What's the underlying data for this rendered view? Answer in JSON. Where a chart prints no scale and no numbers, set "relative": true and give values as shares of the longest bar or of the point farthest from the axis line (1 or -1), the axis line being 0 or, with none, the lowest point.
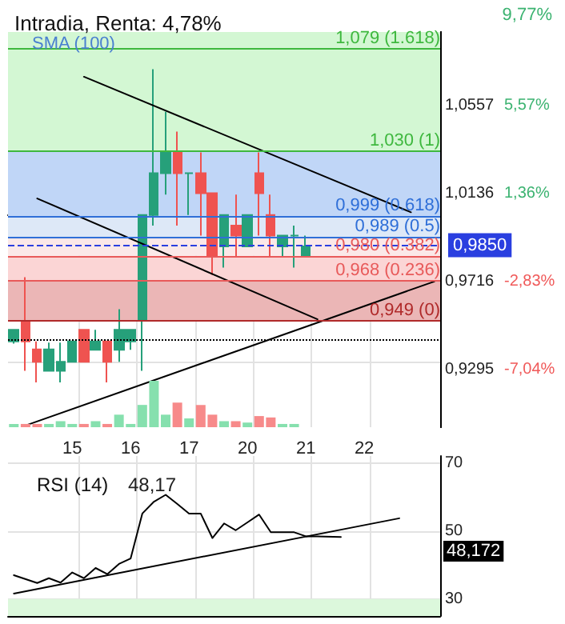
{
  "chart_data": [
    {
      "type": "candlestick",
      "title": "Intradia, Renta: 4,78%",
      "annotations": [
        "SMA (100)",
        "9,77%"
      ],
      "categories": [
        null,
        null,
        null,
        null,
        null,
        "15",
        null,
        null,
        null,
        null,
        "16",
        null,
        null,
        null,
        null,
        "17",
        null,
        null,
        null,
        null,
        "20",
        null,
        null,
        null,
        null,
        "21",
        null,
        null,
        null,
        null,
        "22",
        null,
        null,
        null,
        null,
        null,
        null
      ],
      "ohlc": [
        [
          0.939,
          0.945,
          0.938,
          0.9446
        ],
        [
          0.9487,
          0.9697,
          0.925,
          0.939
        ],
        [
          0.9352,
          0.939,
          0.9194,
          0.9293
        ],
        [
          0.925,
          0.9385,
          0.925,
          0.9352
        ],
        [
          0.925,
          0.9385,
          0.9194,
          0.9293
        ],
        [
          0.9293,
          0.939,
          0.929,
          0.939
        ],
        [
          0.9446,
          0.9446,
          0.9293,
          0.9293
        ],
        [
          0.935,
          0.9446,
          0.935,
          0.939
        ],
        [
          0.939,
          0.939,
          0.9194,
          0.9293
        ],
        [
          0.935,
          0.9544,
          0.9293,
          0.9446
        ],
        [
          0.939,
          0.9446,
          0.935,
          0.9446
        ],
        [
          0.949,
          0.9995,
          0.925,
          0.9995
        ],
        [
          0.9995,
          1.0692,
          0.9944,
          1.0195
        ],
        [
          1.0195,
          1.0488,
          1.0092,
          1.0294
        ],
        [
          1.0294,
          1.0394,
          0.9944,
          1.0195
        ],
        [
          1.0195,
          1.0195,
          0.9995,
          1.0195
        ],
        [
          1.0195,
          1.0294,
          0.9896,
          1.0099
        ],
        [
          1.0099,
          1.0099,
          0.9709,
          0.9799
        ],
        [
          0.9845,
          0.9995,
          0.9743,
          0.9995
        ],
        [
          0.9944,
          1.0092,
          0.9799,
          0.9896
        ],
        [
          0.9845,
          0.9995,
          0.9845,
          0.9995
        ],
        [
          1.0195,
          1.0294,
          0.9896,
          1.0099
        ],
        [
          0.9995,
          1.0092,
          0.9799,
          0.9896
        ],
        [
          0.9845,
          0.9896,
          0.9799,
          0.9896
        ],
        [
          0.9896,
          0.9944,
          0.9743,
          0.9896
        ],
        [
          0.9799,
          0.9896,
          0.9799,
          0.9845
        ],
        null,
        null,
        null,
        null,
        null,
        null,
        null,
        null,
        null,
        null,
        null
      ],
      "colors": [
        "#26a07a",
        "#ef5350",
        "#ef5350",
        "#26a07a",
        "#26a07a",
        "#26a07a",
        "#ef5350",
        "#26a07a",
        "#ef5350",
        "#26a07a",
        "#26a07a",
        "#26a07a",
        "#26a07a",
        "#26a07a",
        "#ef5350",
        "#26a07a",
        "#ef5350",
        "#ef5350",
        "#26a07a",
        "#ef5350",
        "#26a07a",
        "#ef5350",
        "#ef5350",
        "#26a07a",
        "#26a07a",
        "#26a07a",
        null,
        null,
        null,
        null,
        null,
        null,
        null,
        null,
        null,
        null,
        null
      ],
      "series": [
        {
          "type": "line",
          "color": "#000000",
          "values": [
            null,
            null,
            null,
            null,
            null,
            null,
            1.0656,
            null,
            null,
            null,
            null,
            null,
            null,
            null,
            null,
            null,
            null,
            null,
            null,
            null,
            null,
            null,
            null,
            null,
            null,
            null,
            null,
            null,
            null,
            null,
            null,
            null,
            null,
            null,
            1.0008,
            null,
            null
          ]
        },
        {
          "type": "line",
          "color": "#000000",
          "values": [
            null,
            null,
            1.0074,
            null,
            null,
            null,
            null,
            null,
            null,
            null,
            null,
            null,
            null,
            null,
            null,
            null,
            null,
            null,
            null,
            null,
            null,
            null,
            null,
            null,
            null,
            null,
            0.9496,
            null,
            null,
            null,
            null,
            null,
            null,
            null,
            null,
            null,
            null
          ]
        },
        {
          "type": "line",
          "color": "#000000",
          "values": [
            null,
            0.8988,
            null,
            null,
            null,
            null,
            null,
            null,
            null,
            null,
            null,
            null,
            null,
            null,
            null,
            null,
            null,
            null,
            null,
            null,
            null,
            null,
            null,
            null,
            null,
            null,
            null,
            null,
            null,
            null,
            null,
            null,
            null,
            null,
            null,
            null,
            0.9677
          ]
        }
      ],
      "marker": "none",
      "ylim": [
        0.898,
        1.087
      ],
      "yticks": [
        {
          "value": 0.9295,
          "label": "0,9295"
        },
        {
          "value": 0.9716,
          "label": "0,9716"
        },
        {
          "value": 1.0136,
          "label": "1,0136"
        },
        {
          "value": 1.0557,
          "label": "1,0557"
        }
      ],
      "y2lim": [
        -10.19,
        8.71
      ],
      "y2ticks": [
        {
          "value": -7.04,
          "label": "-7,04%"
        },
        {
          "value": -2.83,
          "label": "-2,83%"
        },
        {
          "value": 1.36,
          "label": "1,36%"
        },
        {
          "value": 5.57,
          "label": "5,57%"
        }
      ],
      "grid": true,
      "bands": [
        {
          "axis": "y",
          "from": 1.03,
          "to": 1.087,
          "color": "#d3f7d3"
        },
        {
          "axis": "y",
          "from": 0.999,
          "to": 1.03,
          "color": "#c0d6f7"
        },
        {
          "axis": "y",
          "from": 0.989,
          "to": 0.999,
          "color": "#dde8f7"
        },
        {
          "axis": "y",
          "from": 0.98,
          "to": 0.989,
          "color": "#fbe8e8"
        },
        {
          "axis": "y",
          "from": 0.968,
          "to": 0.98,
          "color": "#fbd5d5"
        },
        {
          "axis": "y",
          "from": 0.949,
          "to": 0.968,
          "color": "#ebb6b6"
        }
      ],
      "ref_lines": [
        {
          "axis": "y",
          "value": 1.079,
          "label": "1,079 (1.618)",
          "color": "#3fb83f"
        },
        {
          "axis": "y",
          "value": 1.03,
          "label": "1,030 (1)",
          "color": "#3fb83f"
        },
        {
          "axis": "y",
          "value": 0.999,
          "label": "0,999 (0.618)",
          "color": "#2f6fd8"
        },
        {
          "axis": "y",
          "value": 0.989,
          "label": "0,989 (0.5)",
          "color": "#2f6fd8"
        },
        {
          "axis": "y",
          "value": 0.98,
          "label": "0,980 (0.382)",
          "color": "#e85a5a"
        },
        {
          "axis": "y",
          "value": 0.968,
          "label": "0,968 (0.236)",
          "color": "#e85a5a"
        },
        {
          "axis": "y",
          "value": 0.949,
          "label": "0,949 (0)",
          "color": "#b02a2a"
        },
        {
          "axis": "y",
          "value": 0.985,
          "label": "0,9850",
          "color": "#2a3fe0",
          "line_style": "dashed"
        },
        {
          "axis": "y",
          "value": 0.9401,
          "color": "#000000",
          "line_style": "dotted"
        }
      ]
    },
    {
      "type": "bar",
      "relative": true,
      "categories": [
        null,
        null,
        null,
        null,
        null,
        "15",
        null,
        null,
        null,
        null,
        "16",
        null,
        null,
        null,
        null,
        "17",
        null,
        null,
        null,
        null,
        "20",
        null,
        null,
        null,
        null,
        "21",
        null,
        null,
        null,
        null,
        "22",
        null,
        null,
        null,
        null,
        null,
        null
      ],
      "values": [
        0.07,
        0.07,
        0.07,
        0.07,
        0.13,
        0.07,
        0.07,
        0.13,
        0.07,
        0.27,
        0.07,
        0.48,
        1,
        0.27,
        0.53,
        0.19,
        0.48,
        0.27,
        0.13,
        0.13,
        0.1,
        0.24,
        0.21,
        0.07,
        0.07,
        null,
        null,
        null,
        null,
        null,
        null,
        null,
        null,
        null,
        null,
        null,
        null
      ],
      "colors": [
        "#86e0ae",
        "#f78a8a",
        "#f78a8a",
        "#86e0ae",
        "#86e0ae",
        "#86e0ae",
        "#f78a8a",
        "#86e0ae",
        "#f78a8a",
        "#86e0ae",
        "#86e0ae",
        "#86e0ae",
        "#86e0ae",
        "#86e0ae",
        "#f78a8a",
        "#86e0ae",
        "#f78a8a",
        "#f78a8a",
        "#86e0ae",
        "#f78a8a",
        "#86e0ae",
        "#f78a8a",
        "#f78a8a",
        "#86e0ae",
        "#86e0ae",
        null,
        null,
        null,
        null,
        null,
        null,
        null,
        null,
        null,
        null,
        null,
        null
      ],
      "tick_labels": false
    },
    {
      "type": "line",
      "title": "RSI (14)",
      "annotations": [
        "48,17",
        "48,172"
      ],
      "categories": [
        null,
        null,
        null,
        null,
        null,
        "15",
        null,
        null,
        null,
        null,
        "16",
        null,
        null,
        null,
        null,
        "17",
        null,
        null,
        null,
        null,
        "20",
        null,
        null,
        null,
        null,
        "21",
        null,
        null,
        null,
        null,
        "22",
        null,
        null,
        null,
        null,
        null,
        null
      ],
      "series": [
        {
          "color": "#000000",
          "values": [
            37.0,
            null,
            34.7,
            36.1,
            34.8,
            37.8,
            36.1,
            39.1,
            37.3,
            40.3,
            41.9,
            55.1,
            58.6,
            60.6,
            57.9,
            55.1,
            55.1,
            47.9,
            52.2,
            50.2,
            52.5,
            54.8,
            49.6,
            49.6,
            49.6,
            48.4,
            48.4,
            null,
            48.2,
            null,
            null,
            null,
            null,
            null,
            null,
            null,
            null
          ]
        },
        {
          "color": "#000000",
          "values": [
            31.6,
            null,
            null,
            null,
            null,
            null,
            null,
            null,
            null,
            null,
            null,
            null,
            null,
            null,
            null,
            null,
            null,
            null,
            null,
            null,
            null,
            null,
            null,
            null,
            null,
            null,
            null,
            null,
            null,
            null,
            null,
            null,
            null,
            53.7,
            null,
            null,
            null
          ]
        }
      ],
      "marker": "none",
      "ylim": [
        25,
        72
      ],
      "yticks": [
        30,
        50,
        70
      ],
      "bands": [
        {
          "axis": "y",
          "from": 25,
          "to": 30,
          "color": "#dcf8dc"
        }
      ],
      "grid": true,
      "tick_labels": "y"
    }
  ]
}
